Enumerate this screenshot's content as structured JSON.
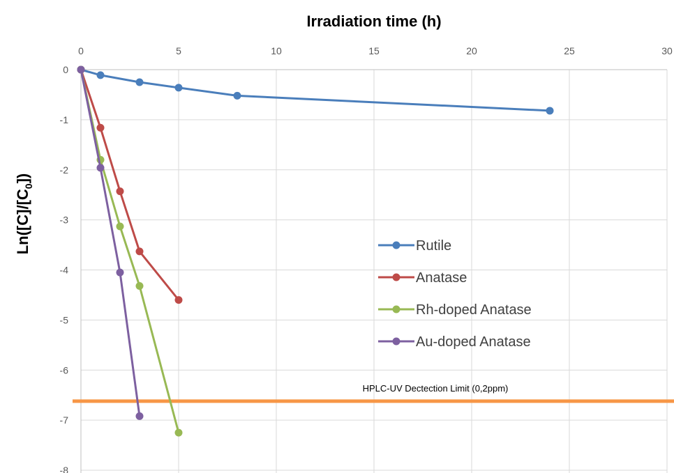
{
  "chart_data": {
    "type": "line",
    "title": "",
    "xlabel": "Irradiation time (h)",
    "ylabel": "Ln([C]/[C0])",
    "ylabel_parts": {
      "pre": "Ln([C]/[C",
      "sub": "0",
      "post": "])"
    },
    "xlim": [
      0,
      30
    ],
    "ylim": [
      -8,
      0
    ],
    "x_ticks": [
      0,
      5,
      10,
      15,
      20,
      25,
      30
    ],
    "y_ticks": [
      0,
      -1,
      -2,
      -3,
      -4,
      -5,
      -6,
      -7,
      -8
    ],
    "x_axis_position": "top",
    "grid": true,
    "legend_position": "center-right",
    "series": [
      {
        "name": "Rutile",
        "color": "#4a7ebb",
        "x": [
          0,
          1,
          3,
          5,
          8,
          24
        ],
        "y": [
          0,
          -0.11,
          -0.25,
          -0.36,
          -0.52,
          -0.82
        ]
      },
      {
        "name": "Anatase",
        "color": "#be4b48",
        "x": [
          0,
          1,
          2,
          3,
          5
        ],
        "y": [
          0,
          -1.16,
          -2.43,
          -3.63,
          -4.6
        ]
      },
      {
        "name": "Rh-doped Anatase",
        "color": "#98b954",
        "x": [
          0,
          1,
          2,
          3,
          5
        ],
        "y": [
          0,
          -1.8,
          -3.13,
          -4.32,
          -7.25
        ]
      },
      {
        "name": "Au-doped Anatase",
        "color": "#7d60a0",
        "x": [
          0,
          1,
          2,
          3
        ],
        "y": [
          0,
          -1.96,
          -4.05,
          -6.92
        ]
      }
    ],
    "reference_line": {
      "label": "HPLC-UV Dectection Limit (0,2ppm)",
      "y": -6.62,
      "color": "#f79646"
    }
  }
}
